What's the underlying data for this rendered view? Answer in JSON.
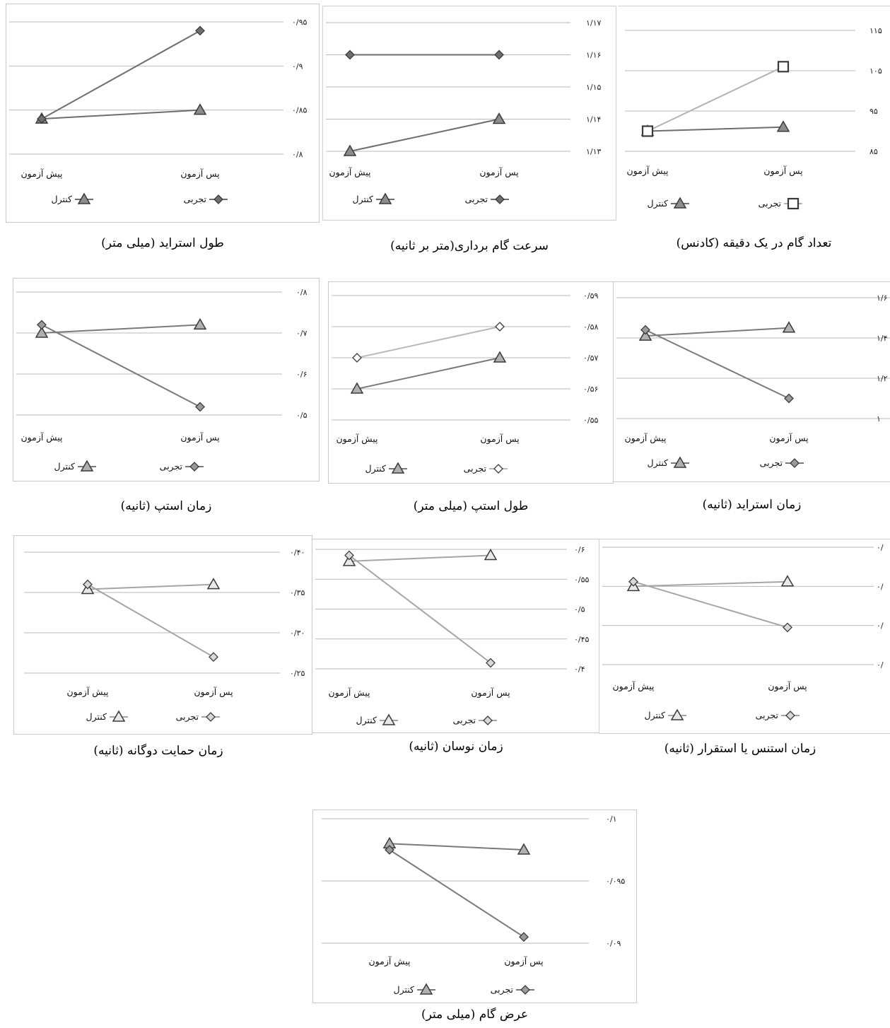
{
  "chart_data": [
    {
      "id": "stride-length",
      "type": "line",
      "caption": "طول استراید (میلی متر)",
      "categories": [
        "پیش آزمون",
        "پس آزمون"
      ],
      "y_ticks": [
        "۰/۸",
        "۰/۸۵",
        "۰/۹",
        "۰/۹۵"
      ],
      "ylim": [
        0.8,
        0.95
      ],
      "series": [
        {
          "name": "تجربی",
          "marker": "diamond",
          "values": [
            0.84,
            0.94
          ],
          "line_color": "#6e6e6e",
          "fill": "#6e6e6e"
        },
        {
          "name": "کنترل",
          "marker": "triangle",
          "values": [
            0.84,
            0.85
          ],
          "line_color": "#6e6e6e",
          "fill": "#8c8c8c"
        }
      ],
      "legend_order": [
        "کنترل",
        "تجربی"
      ],
      "legend_position": "bottom",
      "grid": true
    },
    {
      "id": "step-velocity",
      "type": "line",
      "caption": "سرعت گام برداری(متر بر ثانیه)",
      "categories": [
        "پیش آزمون",
        "پس آزمون"
      ],
      "y_ticks": [
        "۱/۱۳",
        "۱/۱۴",
        "۱/۱۵",
        "۱/۱۶",
        "۱/۱۷"
      ],
      "ylim": [
        1.13,
        1.17
      ],
      "series": [
        {
          "name": "تجربی",
          "marker": "diamond",
          "values": [
            1.16,
            1.16
          ],
          "line_color": "#6e6e6e",
          "fill": "#6e6e6e"
        },
        {
          "name": "کنترل",
          "marker": "triangle",
          "values": [
            1.13,
            1.14
          ],
          "line_color": "#6e6e6e",
          "fill": "#8c8c8c"
        }
      ],
      "legend_order": [
        "کنترل",
        "تجربی"
      ],
      "legend_position": "bottom",
      "grid": true
    },
    {
      "id": "cadence",
      "type": "line",
      "caption": "تعداد گام در یک دقیقه (کادنس)",
      "categories": [
        "پیش آزمون",
        "پس آزمون"
      ],
      "y_ticks": [
        "۸۵",
        "۹۵",
        "۱۰۵",
        "۱۱۵"
      ],
      "ylim": [
        85,
        115
      ],
      "series": [
        {
          "name": "تجربی",
          "marker": "square",
          "values": [
            90,
            106
          ],
          "line_color": "#b3b3b3",
          "fill": "#ffffff"
        },
        {
          "name": "کنترل",
          "marker": "triangle",
          "values": [
            90,
            91
          ],
          "line_color": "#6e6e6e",
          "fill": "#8c8c8c"
        }
      ],
      "legend_order": [
        "کنترل",
        "تجربی"
      ],
      "legend_position": "bottom",
      "grid": true
    },
    {
      "id": "step-time",
      "type": "line",
      "caption": "زمان استپ (ثانیه)",
      "categories": [
        "پیش آزمون",
        "پس آزمون"
      ],
      "y_ticks": [
        "۰/۵",
        "۰/۶",
        "۰/۷",
        "۰/۸"
      ],
      "ylim": [
        0.5,
        0.8
      ],
      "series": [
        {
          "name": "تجربی",
          "marker": "diamond",
          "values": [
            0.72,
            0.52
          ],
          "line_color": "#7a7a7a",
          "fill": "#9a9a9a"
        },
        {
          "name": "کنترل",
          "marker": "triangle",
          "values": [
            0.7,
            0.72
          ],
          "line_color": "#7a7a7a",
          "fill": "#b0b0b0"
        }
      ],
      "legend_order": [
        "کنترل",
        "تجربی"
      ],
      "legend_position": "bottom",
      "grid": true
    },
    {
      "id": "step-length",
      "type": "line",
      "caption": "طول استپ (میلی متر)",
      "categories": [
        "پیش آزمون",
        "پس آزمون"
      ],
      "y_ticks": [
        "۰/۵۵",
        "۰/۵۶",
        "۰/۵۷",
        "۰/۵۸",
        "۰/۵۹"
      ],
      "ylim": [
        0.55,
        0.59
      ],
      "series": [
        {
          "name": "تجربی",
          "marker": "diamond",
          "values": [
            0.57,
            0.58
          ],
          "line_color": "#b8b8b8",
          "fill": "#ffffff"
        },
        {
          "name": "کنترل",
          "marker": "triangle",
          "values": [
            0.56,
            0.57
          ],
          "line_color": "#7a7a7a",
          "fill": "#b0b0b0"
        }
      ],
      "legend_order": [
        "کنترل",
        "تجربی"
      ],
      "legend_position": "bottom",
      "grid": true
    },
    {
      "id": "stride-time",
      "type": "line",
      "caption": "زمان استراید (ثانیه)",
      "categories": [
        "پیش آزمون",
        "پس آزمون"
      ],
      "y_ticks": [
        "۱",
        "۱/۲",
        "۱/۴",
        "۱/۶"
      ],
      "ylim": [
        1.0,
        1.6
      ],
      "series": [
        {
          "name": "تجربی",
          "marker": "diamond",
          "values": [
            1.44,
            1.1
          ],
          "line_color": "#7a7a7a",
          "fill": "#9a9a9a"
        },
        {
          "name": "کنترل",
          "marker": "triangle",
          "values": [
            1.41,
            1.45
          ],
          "line_color": "#7a7a7a",
          "fill": "#b0b0b0"
        }
      ],
      "legend_order": [
        "کنترل",
        "تجربی"
      ],
      "legend_position": "bottom",
      "grid": true
    },
    {
      "id": "double-support-time",
      "type": "line",
      "caption": "زمان حمایت دوگانه (ثانیه)",
      "categories": [
        "پیش آزمون",
        "پس آزمون"
      ],
      "y_ticks": [
        "۰/۲۵",
        "۰/۳۰",
        "۰/۳۵",
        "۰/۴۰"
      ],
      "ylim": [
        0.25,
        0.4
      ],
      "series": [
        {
          "name": "تجربی",
          "marker": "diamond",
          "values": [
            0.36,
            0.27
          ],
          "line_color": "#a5a5a5",
          "fill": "#d8d8d8"
        },
        {
          "name": "کنترل",
          "marker": "triangle",
          "values": [
            0.354,
            0.36
          ],
          "line_color": "#a5a5a5",
          "fill": "#e8e8e8"
        }
      ],
      "legend_order": [
        "کنترل",
        "تجربی"
      ],
      "legend_position": "bottom",
      "grid": true
    },
    {
      "id": "swing-time",
      "type": "line",
      "caption": "زمان نوسان (ثانیه)",
      "categories": [
        "پیش آزمون",
        "پس آزمون"
      ],
      "y_ticks": [
        "۰/۴",
        "۰/۴۵",
        "۰/۵",
        "۰/۵۵",
        "۰/۶"
      ],
      "ylim": [
        0.4,
        0.6
      ],
      "series": [
        {
          "name": "تجربی",
          "marker": "diamond",
          "values": [
            0.59,
            0.41
          ],
          "line_color": "#a5a5a5",
          "fill": "#d8d8d8"
        },
        {
          "name": "کنترل",
          "marker": "triangle",
          "values": [
            0.58,
            0.59
          ],
          "line_color": "#a5a5a5",
          "fill": "#e8e8e8"
        }
      ],
      "legend_order": [
        "کنترل",
        "تجربی"
      ],
      "legend_position": "bottom",
      "grid": true
    },
    {
      "id": "stance-time",
      "type": "line",
      "caption": "زمان استنس یا استقرار (ثانیه)",
      "categories": [
        "پیش آزمون",
        "پس آزمون"
      ],
      "y_ticks": [
        "۰/",
        "۰/",
        "۰/",
        "۰/"
      ],
      "ylim": [
        0,
        3
      ],
      "series": [
        {
          "name": "تجربی",
          "marker": "diamond",
          "values": [
            2.12,
            0.95
          ],
          "line_color": "#a5a5a5",
          "fill": "#d8d8d8"
        },
        {
          "name": "کنترل",
          "marker": "triangle",
          "values": [
            2.0,
            2.12
          ],
          "line_color": "#a5a5a5",
          "fill": "#e8e8e8"
        }
      ],
      "legend_order": [
        "کنترل",
        "تجربی"
      ],
      "legend_position": "bottom",
      "grid": true
    },
    {
      "id": "step-width",
      "type": "line",
      "caption": "عرض گام (میلی متر)",
      "categories": [
        "پیش آزمون",
        "پس آزمون"
      ],
      "y_ticks": [
        "۰/۰۹",
        "۰/۰۹۵",
        "۰/۱"
      ],
      "ylim": [
        0.09,
        0.1
      ],
      "series": [
        {
          "name": "تجربی",
          "marker": "diamond",
          "values": [
            0.0975,
            0.0905
          ],
          "line_color": "#7a7a7a",
          "fill": "#9a9a9a"
        },
        {
          "name": "کنترل",
          "marker": "triangle",
          "values": [
            0.098,
            0.0975
          ],
          "line_color": "#7a7a7a",
          "fill": "#b0b0b0"
        }
      ],
      "legend_order": [
        "کنترل",
        "تجربی"
      ],
      "legend_position": "bottom",
      "grid": true
    }
  ]
}
